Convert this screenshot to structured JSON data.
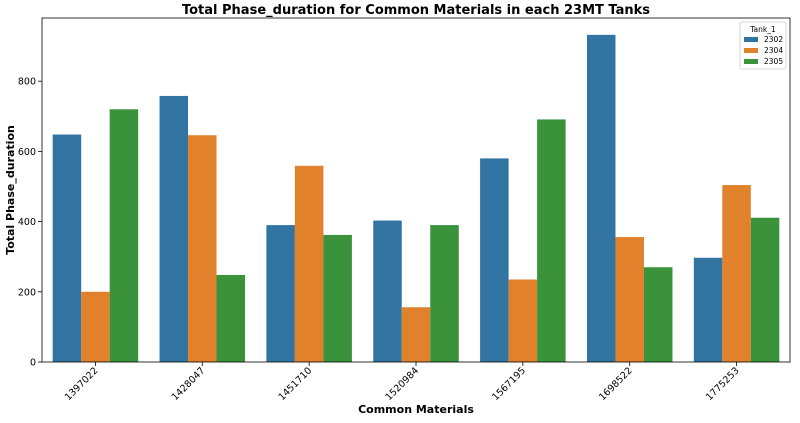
{
  "chart_data": {
    "type": "bar",
    "title": "Total Phase_duration for Common Materials in each 23MT Tanks",
    "xlabel": "Common Materials",
    "ylabel": "Total Phase_duration",
    "categories": [
      "1397022",
      "1428047",
      "1451710",
      "1520984",
      "1567195",
      "1698522",
      "1775253"
    ],
    "series": [
      {
        "name": "2302",
        "color": "#3274a1",
        "values": [
          648,
          758,
          390,
          403,
          580,
          932,
          297
        ]
      },
      {
        "name": "2304",
        "color": "#e1812c",
        "values": [
          200,
          646,
          559,
          156,
          235,
          356,
          504
        ]
      },
      {
        "name": "2305",
        "color": "#3a923a",
        "values": [
          720,
          248,
          362,
          390,
          691,
          270,
          411
        ]
      }
    ],
    "yticks": [
      0,
      200,
      400,
      600,
      800
    ],
    "ylim": [
      0,
      980
    ],
    "legend": {
      "title": "Tank_1",
      "placement": "top-right"
    },
    "grid": false
  }
}
